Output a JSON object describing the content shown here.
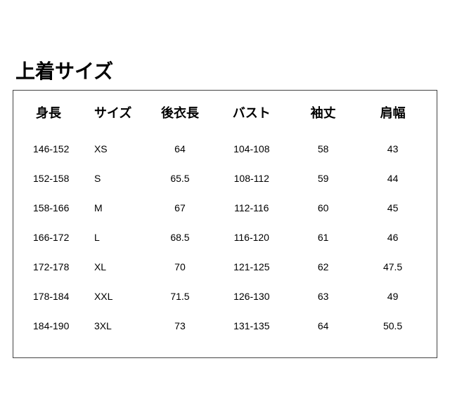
{
  "title": "上着サイズ",
  "table": {
    "columns": [
      "身長",
      "サイズ",
      "後衣長",
      "バスト",
      "袖丈",
      "肩幅"
    ],
    "rows": [
      [
        "146-152",
        "XS",
        "64",
        "104-108",
        "58",
        "43"
      ],
      [
        "152-158",
        "S",
        "65.5",
        "108-112",
        "59",
        "44"
      ],
      [
        "158-166",
        "M",
        "67",
        "112-116",
        "60",
        "45"
      ],
      [
        "166-172",
        "L",
        "68.5",
        "116-120",
        "61",
        "46"
      ],
      [
        "172-178",
        "XL",
        "70",
        "121-125",
        "62",
        "47.5"
      ],
      [
        "178-184",
        "XXL",
        "71.5",
        "126-130",
        "63",
        "49"
      ],
      [
        "184-190",
        "3XL",
        "73",
        "131-135",
        "64",
        "50.5"
      ]
    ],
    "header_fontsize": 18,
    "cell_fontsize": 14,
    "title_fontsize": 28,
    "border_color": "#444444",
    "text_color": "#000000",
    "background_color": "#ffffff"
  }
}
